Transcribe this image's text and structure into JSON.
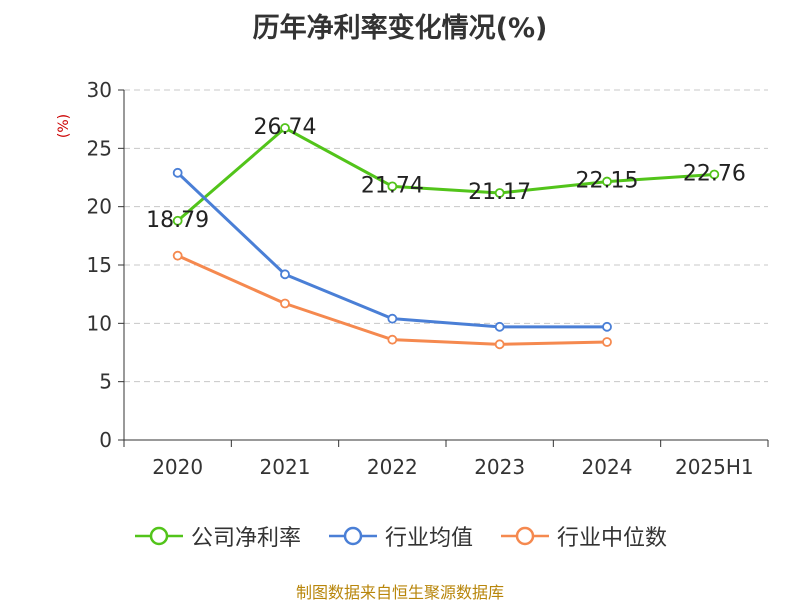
{
  "chart_data": {
    "type": "line",
    "title": "历年净利率变化情况(%)",
    "ylabel": "(%)",
    "xlabel": "",
    "categories": [
      "2020",
      "2021",
      "2022",
      "2023",
      "2024",
      "2025H1"
    ],
    "ylim": [
      0,
      30
    ],
    "yticks": [
      0,
      5,
      10,
      15,
      20,
      25,
      30
    ],
    "grid": true,
    "legend_position": "bottom",
    "series": [
      {
        "name": "公司净利率",
        "color": "#52c41a",
        "values": [
          18.79,
          26.74,
          21.74,
          21.17,
          22.15,
          22.76
        ],
        "labels": [
          "18.79",
          "26.74",
          "21.74",
          "21.17",
          "22.15",
          "22.76"
        ]
      },
      {
        "name": "行业均值",
        "color": "#4a7fd6",
        "values": [
          22.9,
          14.2,
          10.4,
          9.7,
          9.7,
          null
        ]
      },
      {
        "name": "行业中位数",
        "color": "#f5894f",
        "values": [
          15.8,
          11.7,
          8.6,
          8.2,
          8.4,
          null
        ]
      }
    ]
  },
  "source_note": "制图数据来自恒生聚源数据库"
}
